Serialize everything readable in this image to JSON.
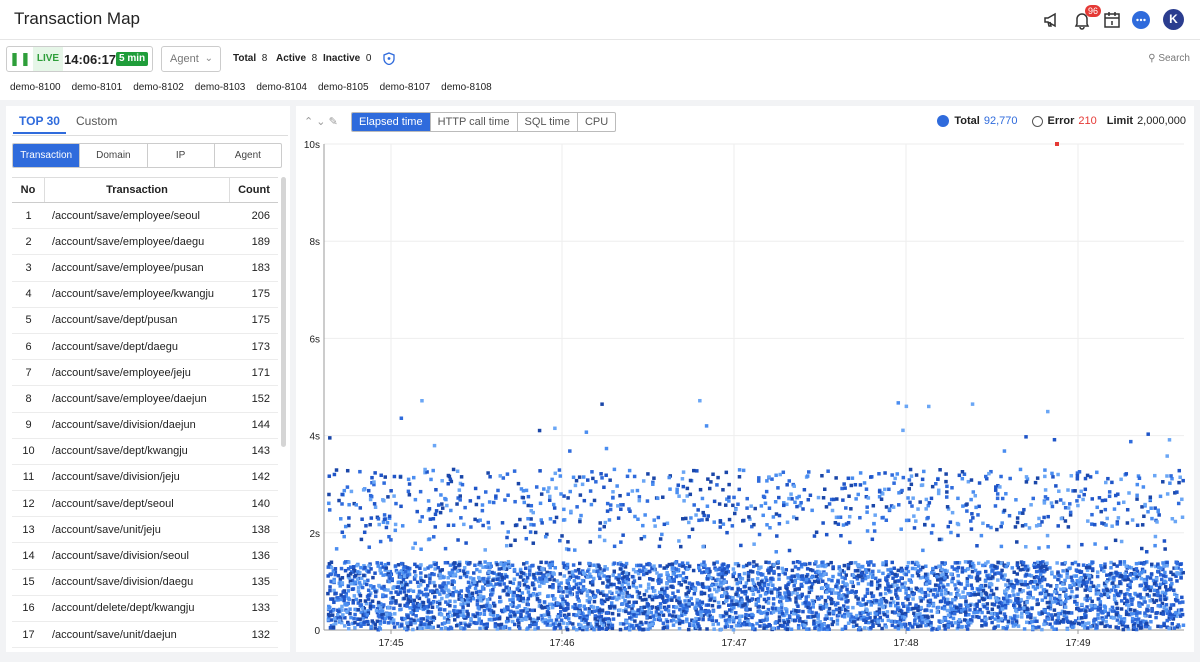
{
  "header": {
    "title": "Transaction Map",
    "notification_count": "96",
    "avatar_letter": "K",
    "icons": [
      "megaphone-icon",
      "bell-icon",
      "calendar-icon",
      "chat-icon",
      "avatar"
    ]
  },
  "toolbar": {
    "live_label": "LIVE",
    "time": "14:06:17",
    "range": "5 min",
    "agent_label": "Agent",
    "total_label": "Total",
    "total_value": "8",
    "active_label": "Active",
    "active_value": "8",
    "inactive_label": "Inactive",
    "inactive_value": "0",
    "search_label": "Search",
    "agents": [
      "demo-8100",
      "demo-8101",
      "demo-8102",
      "demo-8103",
      "demo-8104",
      "demo-8105",
      "demo-8107",
      "demo-8108"
    ]
  },
  "left": {
    "tabs": [
      "TOP 30",
      "Custom"
    ],
    "segments": [
      "Transaction",
      "Domain",
      "IP",
      "Agent"
    ],
    "columns": [
      "No",
      "Transaction",
      "Count"
    ],
    "rows": [
      {
        "no": "1",
        "tx": "/account/save/employee/seoul",
        "count": "206"
      },
      {
        "no": "2",
        "tx": "/account/save/employee/daegu",
        "count": "189"
      },
      {
        "no": "3",
        "tx": "/account/save/employee/pusan",
        "count": "183"
      },
      {
        "no": "4",
        "tx": "/account/save/employee/kwangju",
        "count": "175"
      },
      {
        "no": "5",
        "tx": "/account/save/dept/pusan",
        "count": "175"
      },
      {
        "no": "6",
        "tx": "/account/save/dept/daegu",
        "count": "173"
      },
      {
        "no": "7",
        "tx": "/account/save/employee/jeju",
        "count": "171"
      },
      {
        "no": "8",
        "tx": "/account/save/employee/daejun",
        "count": "152"
      },
      {
        "no": "9",
        "tx": "/account/save/division/daejun",
        "count": "144"
      },
      {
        "no": "10",
        "tx": "/account/save/dept/kwangju",
        "count": "143"
      },
      {
        "no": "11",
        "tx": "/account/save/division/jeju",
        "count": "142"
      },
      {
        "no": "12",
        "tx": "/account/save/dept/seoul",
        "count": "140"
      },
      {
        "no": "13",
        "tx": "/account/save/unit/jeju",
        "count": "138"
      },
      {
        "no": "14",
        "tx": "/account/save/division/seoul",
        "count": "136"
      },
      {
        "no": "15",
        "tx": "/account/save/division/daegu",
        "count": "135"
      },
      {
        "no": "16",
        "tx": "/account/delete/dept/kwangju",
        "count": "133"
      },
      {
        "no": "17",
        "tx": "/account/save/unit/daejun",
        "count": "132"
      }
    ]
  },
  "main": {
    "tabs": [
      "Elapsed time",
      "HTTP call time",
      "SQL time",
      "CPU"
    ],
    "total_label": "Total",
    "total_value": "92,770",
    "error_label": "Error",
    "error_value": "210",
    "limit_label": "Limit",
    "limit_value": "2,000,000"
  },
  "colors": {
    "accent": "#2f6bdc",
    "error": "#e53935",
    "live": "#2e9e3a"
  },
  "chart_data": {
    "type": "scatter",
    "y_ticks": [
      "0",
      "2s",
      "4s",
      "6s",
      "8s",
      "10s"
    ],
    "ylim": [
      0,
      10
    ],
    "x_ticks": [
      "17:45",
      "17:46",
      "17:47",
      "17:48",
      "17:49"
    ],
    "grid": true
  }
}
